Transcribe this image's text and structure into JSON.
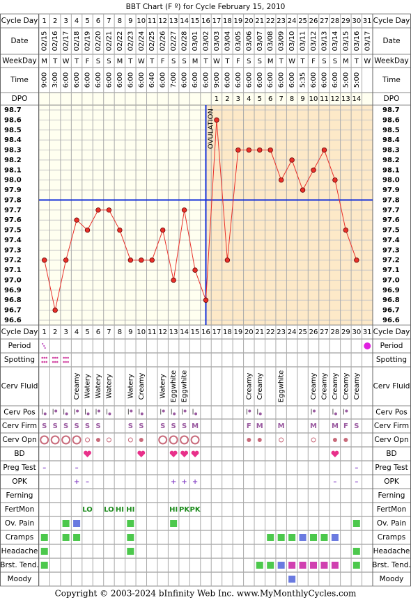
{
  "title": "BBT Chart (F º) for Cycle February 15, 2010",
  "header_labels": {
    "cycle_day": "Cycle Day",
    "date": "Date",
    "weekday": "WeekDay",
    "time": "Time",
    "dpo": "DPO"
  },
  "cycle_days": [
    1,
    2,
    3,
    4,
    5,
    6,
    7,
    8,
    9,
    10,
    11,
    12,
    13,
    14,
    15,
    16,
    17,
    18,
    19,
    20,
    21,
    22,
    23,
    24,
    25,
    26,
    27,
    28,
    29,
    30,
    31
  ],
  "dates": [
    "02/15",
    "02/16",
    "02/17",
    "02/18",
    "02/19",
    "02/20",
    "02/21",
    "02/22",
    "02/23",
    "02/24",
    "02/25",
    "02/26",
    "02/27",
    "02/28",
    "03/01",
    "03/02",
    "03/03",
    "03/04",
    "03/05",
    "03/06",
    "03/07",
    "03/08",
    "03/09",
    "03/10",
    "03/11",
    "03/12",
    "03/13",
    "03/14",
    "03/15",
    "03/16",
    "03/17"
  ],
  "weekdays": [
    "M",
    "T",
    "W",
    "T",
    "F",
    "S",
    "S",
    "M",
    "T",
    "W",
    "T",
    "F",
    "S",
    "S",
    "M",
    "T",
    "W",
    "T",
    "F",
    "S",
    "S",
    "M",
    "T",
    "W",
    "T",
    "F",
    "S",
    "S",
    "M",
    "T",
    "W"
  ],
  "times": [
    "9:00",
    "3:00",
    "6:00",
    "6:00",
    "6:00",
    "6:00",
    "6:00",
    "6:00",
    "6:00",
    "6:00",
    "6:40",
    "6:00",
    "7:00",
    "6:00",
    "6:00",
    "6:00",
    "9:00",
    "6:00",
    "6:00",
    "6:00",
    "6:00",
    "6:00",
    "6:00",
    "6:00",
    "5:35",
    "6:00",
    "6:00",
    "6:00",
    "5:00",
    "5:00",
    null
  ],
  "dpo": [
    null,
    null,
    null,
    null,
    null,
    null,
    null,
    null,
    null,
    null,
    null,
    null,
    null,
    null,
    null,
    null,
    1,
    2,
    3,
    4,
    5,
    6,
    7,
    8,
    9,
    10,
    11,
    12,
    13,
    14,
    null
  ],
  "chart_data": {
    "type": "line",
    "values": [
      97.2,
      96.7,
      97.2,
      97.6,
      97.5,
      97.7,
      97.7,
      97.5,
      97.2,
      97.2,
      97.2,
      97.5,
      97.0,
      97.7,
      97.1,
      96.8,
      98.6,
      97.2,
      98.3,
      98.3,
      98.3,
      98.3,
      98.0,
      98.2,
      97.9,
      98.1,
      98.3,
      98.0,
      97.5,
      97.2,
      null
    ],
    "color": "#e8302a",
    "ylim": [
      96.6,
      98.7
    ],
    "yticks": [
      98.7,
      98.6,
      98.5,
      98.4,
      98.3,
      98.2,
      98.1,
      {
        "value": 98.0,
        "label": "98.0"
      },
      97.9,
      97.8,
      97.7,
      97.6,
      97.5,
      97.4,
      97.3,
      97.2,
      97.1,
      {
        "value": 97.0,
        "label": "97.0"
      },
      96.9,
      96.8,
      96.7,
      96.6
    ],
    "grid": true,
    "coverline": 97.8,
    "ovulation_day": 16,
    "ovulation_label": "OVULATION"
  },
  "observations": [
    {
      "label": "Period"
    },
    {
      "label": "Spotting"
    },
    {
      "label": "Cerv Fluid",
      "values": [
        null,
        null,
        null,
        "Creamy",
        "Watery",
        "Watery",
        "Watery",
        null,
        "Watery",
        "Creamy",
        null,
        "Watery",
        "Eggwhite",
        "Eggwhite",
        null,
        null,
        null,
        null,
        null,
        "Creamy",
        "Creamy",
        null,
        "Eggwhite",
        null,
        null,
        "Creamy",
        "Creamy",
        "Creamy",
        "Creamy",
        "Creamy",
        null
      ]
    },
    {
      "label": "Cerv Pos"
    },
    {
      "label": "Cerv Firm",
      "values": [
        "S",
        "S",
        "S",
        "S",
        "S",
        "S",
        null,
        null,
        "S",
        "S",
        null,
        "S",
        "S",
        "S",
        "M",
        null,
        null,
        null,
        null,
        "F",
        "M",
        null,
        "M",
        null,
        null,
        "M",
        null,
        "M",
        "F",
        "S",
        null
      ]
    },
    {
      "label": "Cerv Opn"
    },
    {
      "label": "BD"
    },
    {
      "label": "Preg Test",
      "values": [
        "–",
        null,
        null,
        "–",
        null,
        null,
        null,
        null,
        null,
        null,
        null,
        null,
        null,
        null,
        null,
        null,
        null,
        null,
        null,
        null,
        null,
        null,
        null,
        null,
        null,
        null,
        null,
        null,
        null,
        "–",
        null
      ]
    },
    {
      "label": "OPK",
      "values": [
        null,
        null,
        null,
        "+",
        "–",
        null,
        null,
        null,
        null,
        null,
        null,
        null,
        "+",
        "+",
        "+",
        null,
        null,
        null,
        null,
        null,
        null,
        null,
        null,
        null,
        null,
        null,
        null,
        "–",
        null,
        "–",
        null
      ]
    },
    {
      "label": "Ferning"
    },
    {
      "label": "FertMon",
      "values": [
        null,
        null,
        null,
        null,
        "LO",
        null,
        "LO",
        "HI",
        "HI",
        null,
        null,
        null,
        "HI",
        "PK",
        "PK",
        null,
        null,
        null,
        null,
        null,
        null,
        null,
        null,
        null,
        null,
        null,
        null,
        null,
        null,
        null,
        null
      ]
    },
    {
      "label": "Ov. Pain"
    },
    {
      "label": "Cramps"
    },
    {
      "label": "Headache"
    },
    {
      "label": "Brst. Tend."
    },
    {
      "label": "Moody"
    }
  ],
  "footer": "Copyright © 2003-2024 bInfinity Web Inc.     www.MyMonthlyCycles.com"
}
